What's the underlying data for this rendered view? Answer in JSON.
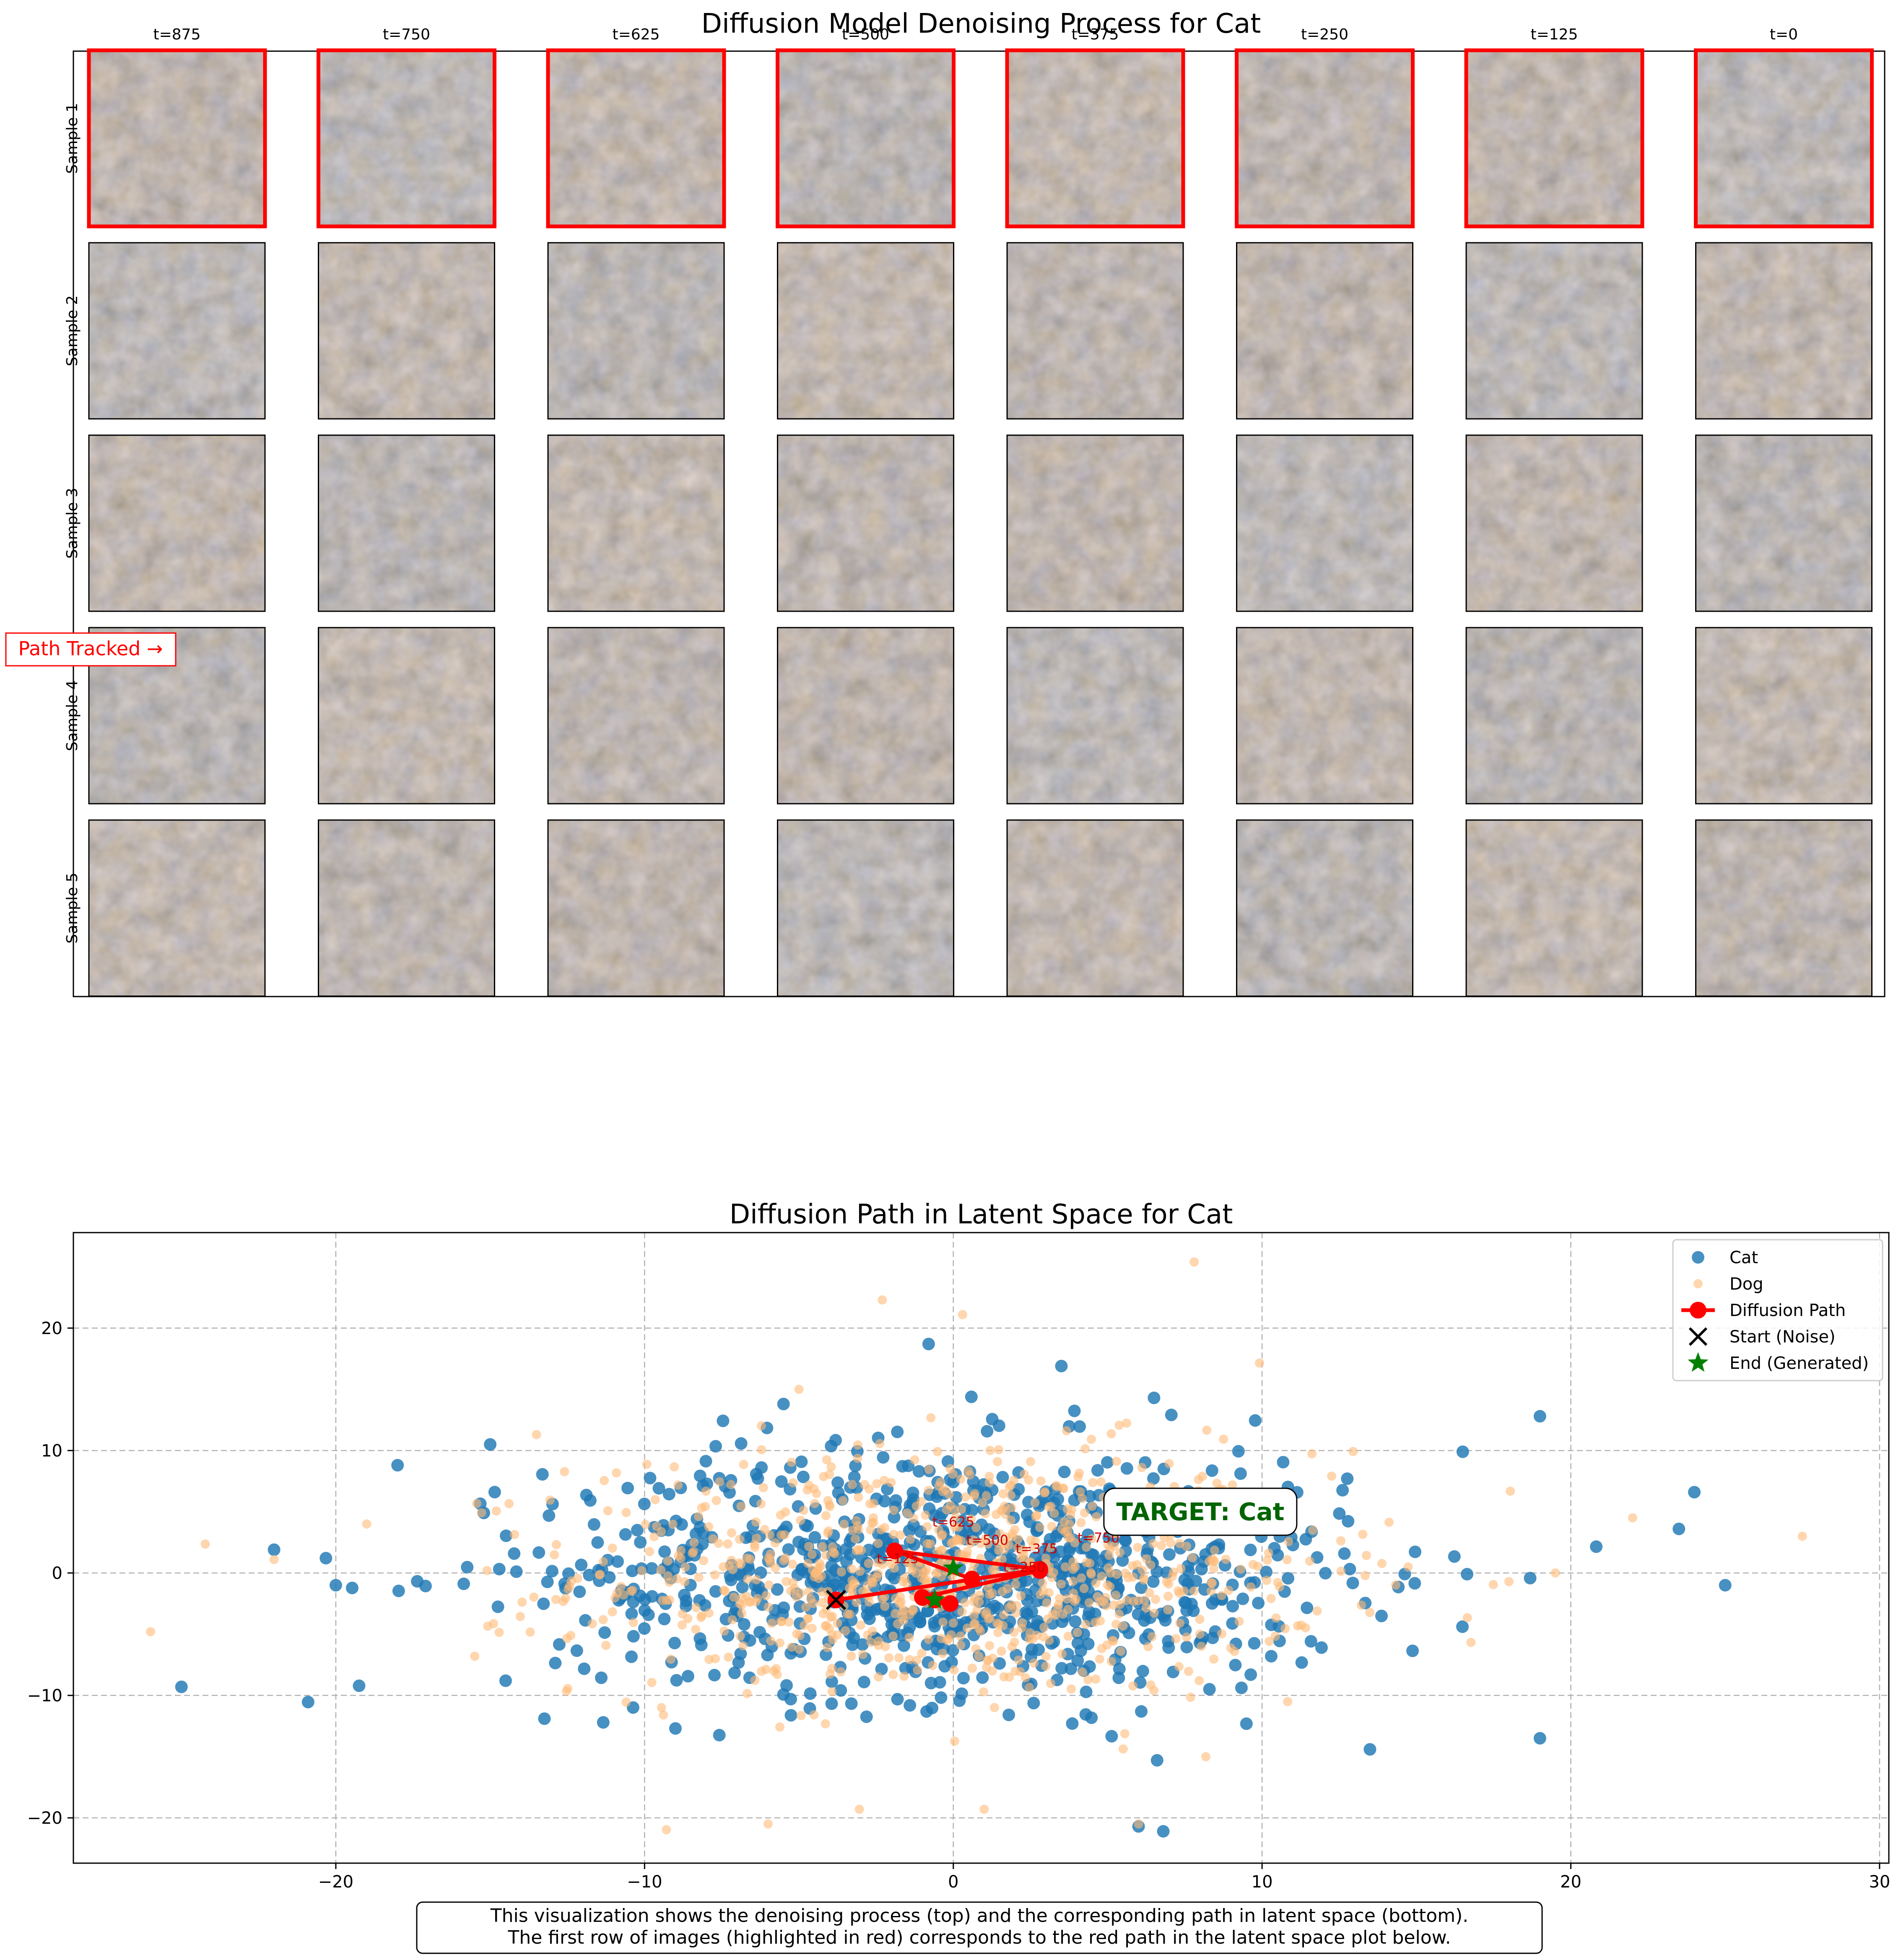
{
  "figure": {
    "title": "Diffusion Model Denoising Process for Cat",
    "path_tracked_label": "Path Tracked →",
    "caption_line1": "This visualization shows the denoising process (top) and the corresponding path in latent space (bottom).",
    "caption_line2": "The first row of images (highlighted in red) corresponds to the red path in the latent space plot below."
  },
  "grid": {
    "columns": [
      "t=875",
      "t=750",
      "t=625",
      "t=500",
      "t=375",
      "t=250",
      "t=125",
      "t=0"
    ],
    "rows": [
      "Sample 1",
      "Sample 2",
      "Sample 3",
      "Sample 4",
      "Sample 5"
    ],
    "highlighted_row": 0,
    "highlight_color": "#ff0000"
  },
  "chart_data": {
    "type": "scatter",
    "title": "Diffusion Path in Latent Space for Cat",
    "xlabel": "",
    "ylabel": "",
    "xlim": [
      -28.5,
      30.3
    ],
    "ylim": [
      -23.7,
      27.8
    ],
    "xticks": [
      -20,
      -10,
      0,
      10,
      20,
      30
    ],
    "yticks": [
      -20,
      -10,
      0,
      10,
      20
    ],
    "grid": true,
    "legend_position": "top-right",
    "target_label": "TARGET: Cat",
    "target_label_position": [
      8,
      5
    ],
    "series": [
      {
        "name": "Cat",
        "marker": "circle",
        "color": "#1f77b4",
        "count": 900,
        "spread_x": 6.5,
        "spread_y": 5.0,
        "outliers": [
          [
            -25,
            -9.3
          ],
          [
            -22,
            1.9
          ],
          [
            -20,
            -1
          ],
          [
            -18,
            8.8
          ],
          [
            -15,
            10.5
          ],
          [
            -14.5,
            -8.8
          ],
          [
            -9,
            -12.7
          ],
          [
            -5.5,
            13.8
          ],
          [
            -0.8,
            18.7
          ],
          [
            3.5,
            16.9
          ],
          [
            6.5,
            14.3
          ],
          [
            6.6,
            -15.3
          ],
          [
            6,
            -20.7
          ],
          [
            6.8,
            -21.1
          ],
          [
            16.5,
            9.9
          ],
          [
            19,
            12.8
          ],
          [
            19,
            -13.5
          ],
          [
            24,
            6.6
          ],
          [
            25,
            -1
          ],
          [
            23.5,
            3.6
          ]
        ]
      },
      {
        "name": "Dog",
        "marker": "circle",
        "color": "#ffbb78",
        "count": 900,
        "spread_x": 6.0,
        "spread_y": 5.0,
        "outliers": [
          [
            -26,
            -4.8
          ],
          [
            -22,
            1.1
          ],
          [
            -19,
            4
          ],
          [
            -15.5,
            -6.8
          ],
          [
            -13.5,
            11.3
          ],
          [
            -5,
            15
          ],
          [
            -2.3,
            22.3
          ],
          [
            0.3,
            21.1
          ],
          [
            7.8,
            25.4
          ],
          [
            6,
            -20.5
          ],
          [
            -6,
            -20.5
          ],
          [
            1,
            -19.3
          ],
          [
            27.5,
            3
          ],
          [
            22,
            4.5
          ],
          [
            19.5,
            0
          ]
        ]
      },
      {
        "name": "Diffusion Path",
        "marker": "line-circle",
        "color": "#ff0000",
        "points": [
          {
            "t": "t=875",
            "x": -3.8,
            "y": -2.2
          },
          {
            "t": "t=750",
            "x": 2.8,
            "y": 0.3
          },
          {
            "t": "t=625",
            "x": -1.9,
            "y": 1.8
          },
          {
            "t": "t=500",
            "x": 0.6,
            "y": -0.5
          },
          {
            "t": "t=375",
            "x": 2.8,
            "y": 0.2
          },
          {
            "t": "t=250",
            "x": -1.0,
            "y": -2.0
          },
          {
            "t": "t=125",
            "x": -0.1,
            "y": -2.5
          },
          {
            "t": "t=0",
            "x": -0.6,
            "y": -2.2
          }
        ],
        "labels": [
          {
            "text": "t=625",
            "x": 0.0,
            "y": 3.8
          },
          {
            "text": "t=500",
            "x": 1.1,
            "y": 2.3
          },
          {
            "text": "t=375",
            "x": 2.7,
            "y": 1.6
          },
          {
            "text": "t=750",
            "x": 4.7,
            "y": 2.5
          },
          {
            "text": "t=125",
            "x": -1.8,
            "y": 0.8
          },
          {
            "text": "t=250",
            "x": 2.3,
            "y": 0.1
          }
        ]
      },
      {
        "name": "Start (Noise)",
        "marker": "x",
        "color": "#000000",
        "points": [
          {
            "x": -3.8,
            "y": -2.2
          }
        ]
      },
      {
        "name": "End (Generated)",
        "marker": "star",
        "color": "#008000",
        "points": [
          {
            "x": -0.6,
            "y": -2.2
          },
          {
            "x": 0.0,
            "y": 0.4
          }
        ]
      }
    ]
  }
}
